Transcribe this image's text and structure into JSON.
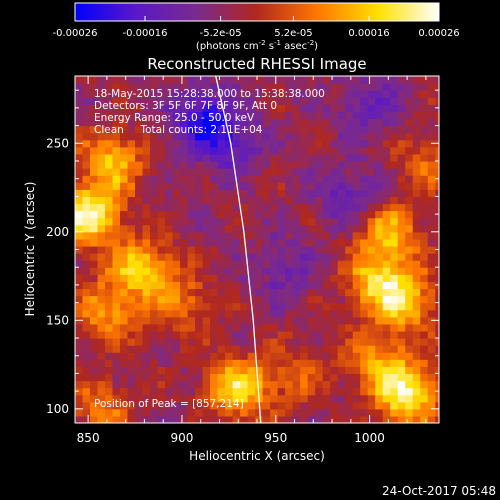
{
  "colorbar": {
    "tick_labels": [
      "-0.00026",
      "-0.00016",
      "-5.2e-05",
      "5.2e-05",
      "0.00016",
      "0.00026"
    ],
    "tick_values": [
      -0.00026,
      -0.00016,
      -5.2e-05,
      5.2e-05,
      0.00016,
      0.00026
    ],
    "range": [
      -0.00026,
      0.00026
    ],
    "units_base": "(photons cm",
    "units_exp1": "-2",
    "units_mid": " s",
    "units_exp2": "-1",
    "units_end": " asec",
    "units_exp3": "-2",
    "units_close": ")",
    "colors": [
      "#0000ff",
      "#5a18c8",
      "#7a2a8e",
      "#b1281e",
      "#ff7700",
      "#ffe000",
      "#ffffff"
    ]
  },
  "chart_data": {
    "type": "heatmap",
    "title": "Reconstructed RHESSI Image",
    "xlabel": "Heliocentric X (arcsec)",
    "ylabel": "Heliocentric Y (arcsec)",
    "xlim": [
      843,
      1037
    ],
    "ylim": [
      92,
      288
    ],
    "x_ticks": [
      850,
      900,
      950,
      1000
    ],
    "y_ticks": [
      100,
      150,
      200,
      250
    ],
    "limb_curve": [
      [
        918,
        288
      ],
      [
        926,
        250
      ],
      [
        933,
        200
      ],
      [
        938,
        150
      ],
      [
        942,
        92
      ]
    ],
    "hot_regions": [
      {
        "x": 850,
        "y": 210,
        "value": 0.00026
      },
      {
        "x": 863,
        "y": 240,
        "value": 0.00018
      },
      {
        "x": 878,
        "y": 180,
        "value": 0.0002
      },
      {
        "x": 860,
        "y": 155,
        "value": 0.00015
      },
      {
        "x": 900,
        "y": 160,
        "value": 0.00012
      },
      {
        "x": 930,
        "y": 112,
        "value": 0.00022
      },
      {
        "x": 1010,
        "y": 200,
        "value": 0.00018
      },
      {
        "x": 1020,
        "y": 160,
        "value": 0.00016
      },
      {
        "x": 1005,
        "y": 172,
        "value": 0.0002
      },
      {
        "x": 1020,
        "y": 108,
        "value": 0.00025
      },
      {
        "x": 1005,
        "y": 128,
        "value": 0.00014
      },
      {
        "x": 1030,
        "y": 240,
        "value": 0.0001
      },
      {
        "x": 857,
        "y": 100,
        "value": 0.00012
      },
      {
        "x": 960,
        "y": 120,
        "value": 9e-05
      }
    ],
    "cold_regions": [
      {
        "x": 910,
        "y": 265,
        "value": -0.00016
      },
      {
        "x": 925,
        "y": 250,
        "value": -0.00012
      },
      {
        "x": 990,
        "y": 220,
        "value": -0.00011
      },
      {
        "x": 1000,
        "y": 270,
        "value": -9e-05
      },
      {
        "x": 955,
        "y": 180,
        "value": -8e-05
      }
    ]
  },
  "annotation": {
    "line1": "18-May-2015 15:28:38.000 to 15:38:38.000",
    "line2": "Detectors: 3F 5F 6F 7F 8F 9F, Att 0",
    "line3": "Energy Range: 25.0 - 50.0 keV",
    "line4": "Clean     Total counts: 2.11E+04",
    "peak": "Position of Peak = [857,214]"
  },
  "footer": {
    "timestamp": "24-Oct-2017 05:48"
  }
}
